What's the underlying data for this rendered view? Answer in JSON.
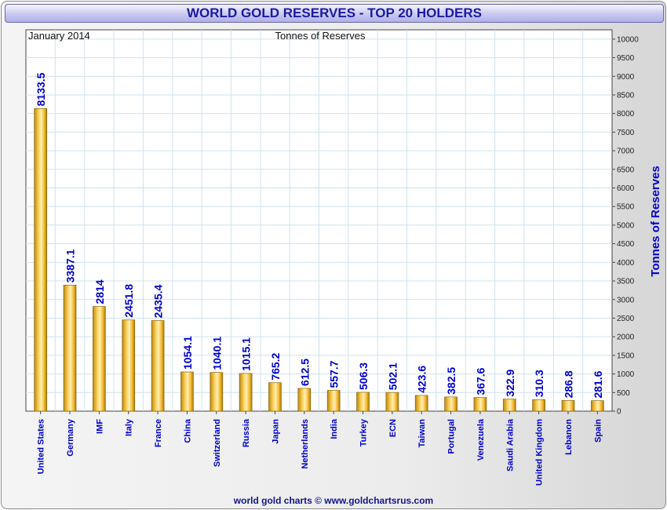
{
  "title": "WORLD GOLD RESERVES - TOP 20 HOLDERS",
  "footer": "world gold charts © www.goldchartsrus.com",
  "colors": {
    "title": "#1a1aa0",
    "bar": "#f5b82a",
    "label": "#0000cc",
    "grid": "#cfe3ee"
  },
  "chart_data": {
    "type": "bar",
    "title": "WORLD GOLD RESERVES - TOP 20 HOLDERS",
    "subtitle_left": "January 2014",
    "subtitle_center": "Tonnes of Reserves",
    "xlabel": "",
    "ylabel": "Tonnes of Reserves",
    "ylim": [
      0,
      10250
    ],
    "ytick_step": 500,
    "yticks": [
      "0",
      "500",
      "1000",
      "1500",
      "2000",
      "2500",
      "3000",
      "3500",
      "4000",
      "4500",
      "5000",
      "5500",
      "6000",
      "6500",
      "7000",
      "7500",
      "8000",
      "8500",
      "9000",
      "9500",
      "10000"
    ],
    "categories": [
      "United States",
      "Germany",
      "IMF",
      "Italy",
      "France",
      "China",
      "Switzerland",
      "Russia",
      "Japan",
      "Netherlands",
      "India",
      "Turkey",
      "ECN",
      "Taiwan",
      "Portugal",
      "Venezuela",
      "Saudi Arabia",
      "United Kingdom",
      "Lebanon",
      "Spain"
    ],
    "values": [
      8133.5,
      3387.1,
      2814,
      2451.8,
      2435.4,
      1054.1,
      1040.1,
      1015.1,
      765.2,
      612.5,
      557.7,
      506.3,
      502.1,
      423.6,
      382.5,
      367.6,
      322.9,
      310.3,
      286.8,
      281.6
    ],
    "value_labels": [
      "8133.5",
      "3387.1",
      "2814",
      "2451.8",
      "2435.4",
      "1054.1",
      "1040.1",
      "1015.1",
      "765.2",
      "612.5",
      "557.7",
      "506.3",
      "502.1",
      "423.6",
      "382.5",
      "367.6",
      "322.9",
      "310.3",
      "286.8",
      "281.6"
    ]
  }
}
